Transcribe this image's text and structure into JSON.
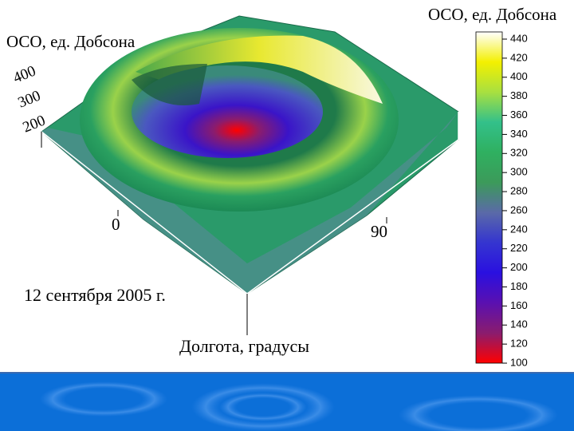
{
  "chart_data": {
    "type": "surface",
    "zlabel": "ОСО, ед. Добсона",
    "zticks": [
      200,
      300,
      400
    ],
    "xticks": [
      0,
      90
    ],
    "xlabel": "Долгота, градусы",
    "annotation": "12 сентября 2005 г.",
    "colorbar": {
      "label": "ОСО, ед. Добсона",
      "lim": [
        100,
        440
      ],
      "ticks": [
        100,
        120,
        140,
        160,
        180,
        200,
        220,
        240,
        260,
        280,
        300,
        320,
        340,
        360,
        380,
        400,
        420,
        440
      ],
      "colors": [
        "#ff0000",
        "#8a1c6e",
        "#5a10b0",
        "#2a10e0",
        "#3535d0",
        "#5a6aa8",
        "#3c9a5a",
        "#2fb060",
        "#33c08a",
        "#a8e040",
        "#f4f000",
        "#ffffff"
      ]
    }
  }
}
